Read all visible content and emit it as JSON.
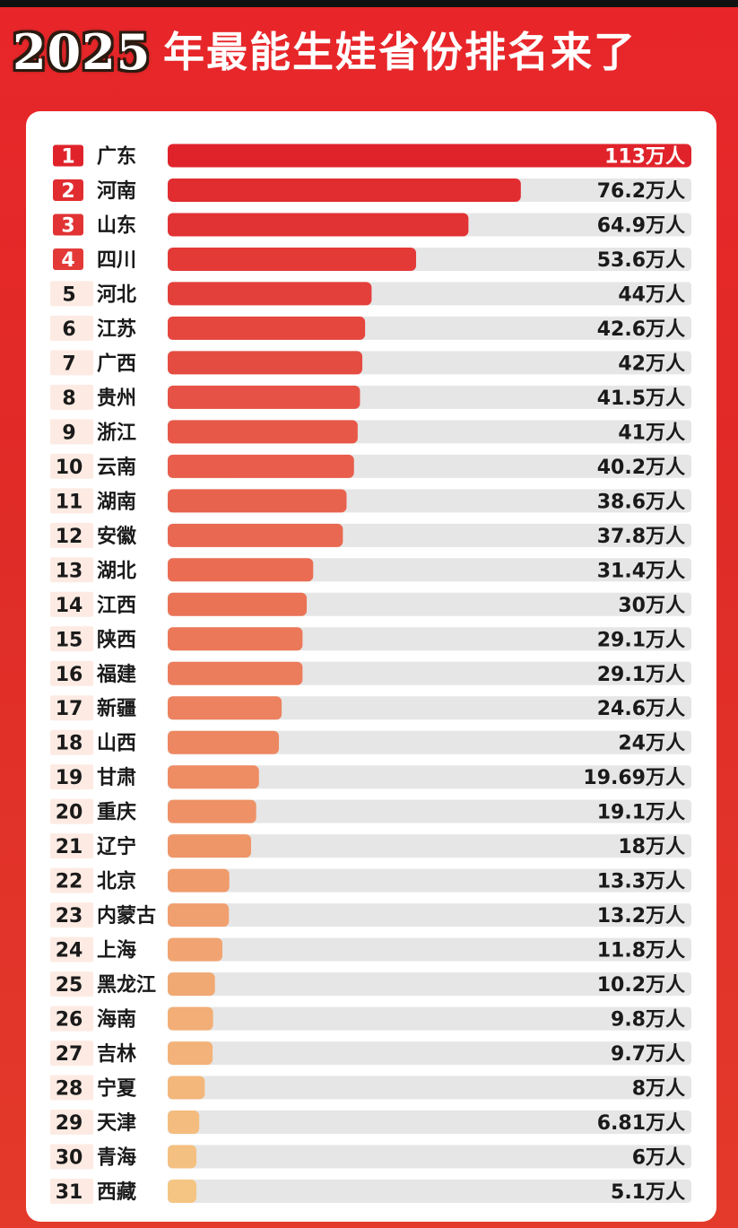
{
  "header": {
    "year": "2025",
    "title": "年最能生娃省份排名来了"
  },
  "colors": {
    "background": "#e22a27",
    "card": "#ffffff",
    "track": "#e6e6e6",
    "bar_top": "#e0232b",
    "bar_bottom": "#f5c583",
    "rank_top3_text": "#ffffff"
  },
  "chart_data": {
    "type": "bar",
    "orientation": "horizontal",
    "unit_label": "万人",
    "xlim": [
      0,
      113
    ],
    "ranks": [
      "1",
      "2",
      "3",
      "4",
      "5",
      "6",
      "7",
      "8",
      "9",
      "10",
      "11",
      "12",
      "13",
      "14",
      "15",
      "16",
      "17",
      "18",
      "19",
      "20",
      "21",
      "22",
      "23",
      "24",
      "25",
      "26",
      "27",
      "28",
      "29",
      "30",
      "31"
    ],
    "categories": [
      "广东",
      "河南",
      "山东",
      "四川",
      "河北",
      "江苏",
      "广西",
      "贵州",
      "浙江",
      "云南",
      "湖南",
      "安徽",
      "湖北",
      "江西",
      "陕西",
      "福建",
      "新疆",
      "山西",
      "甘肃",
      "重庆",
      "辽宁",
      "北京",
      "内蒙古",
      "上海",
      "黑龙江",
      "海南",
      "吉林",
      "宁夏",
      "天津",
      "青海",
      "西藏"
    ],
    "values": [
      113,
      76.2,
      64.9,
      53.6,
      44,
      42.6,
      42,
      41.5,
      41,
      40.2,
      38.6,
      37.8,
      31.4,
      30,
      29.1,
      29.1,
      24.6,
      24,
      19.69,
      19.1,
      18,
      13.3,
      13.2,
      11.8,
      10.2,
      9.8,
      9.7,
      8,
      6.81,
      6,
      5.1
    ],
    "value_labels": [
      "113万人",
      "76.2万人",
      "64.9万人",
      "53.6万人",
      "44万人",
      "42.6万人",
      "42万人",
      "41.5万人",
      "41万人",
      "40.2万人",
      "38.6万人",
      "37.8万人",
      "31.4万人",
      "30万人",
      "29.1万人",
      "29.1万人",
      "24.6万人",
      "24万人",
      "19.69万人",
      "19.1万人",
      "18万人",
      "13.3万人",
      "13.2万人",
      "11.8万人",
      "10.2万人",
      "9.8万人",
      "9.7万人",
      "8万人",
      "6.81万人",
      "6万人",
      "5.1万人"
    ]
  }
}
